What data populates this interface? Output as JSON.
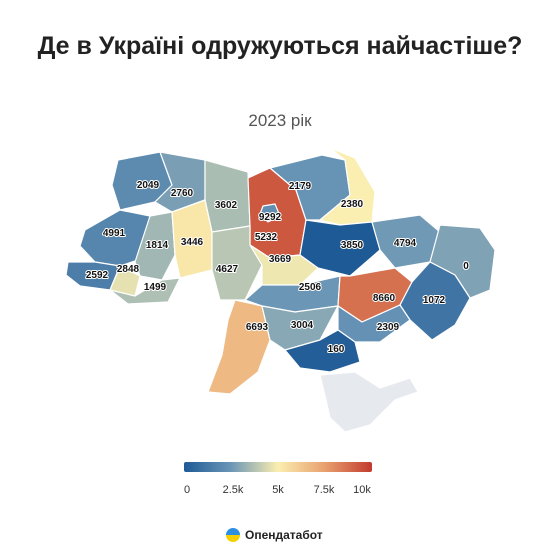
{
  "title": "Де в Україні одружуються найчастіше?",
  "subtitle": "2023 рік",
  "regions": [
    {
      "value": "2049"
    },
    {
      "value": "2760"
    },
    {
      "value": "3602"
    },
    {
      "value": "9292"
    },
    {
      "value": "2179"
    },
    {
      "value": "2380"
    },
    {
      "value": "4991"
    },
    {
      "value": "1814"
    },
    {
      "value": "3446"
    },
    {
      "value": "5232"
    },
    {
      "value": "3850"
    },
    {
      "value": "4794"
    },
    {
      "value": "0"
    },
    {
      "value": "2592"
    },
    {
      "value": "2848"
    },
    {
      "value": "1499"
    },
    {
      "value": "4627"
    },
    {
      "value": "3669"
    },
    {
      "value": "2506"
    },
    {
      "value": "8660"
    },
    {
      "value": "1072"
    },
    {
      "value": "6693"
    },
    {
      "value": "3004"
    },
    {
      "value": "2309"
    },
    {
      "value": "160"
    }
  ],
  "legend": {
    "ticks": [
      "0",
      "2.5k",
      "5k",
      "7.5k",
      "10k"
    ],
    "min": 0,
    "max": 10000,
    "colors": [
      "#1e5a96",
      "#6b96b6",
      "#fbeeb0",
      "#e8a06e",
      "#c23b2e"
    ]
  },
  "brand": {
    "name": "Опендатабот"
  }
}
